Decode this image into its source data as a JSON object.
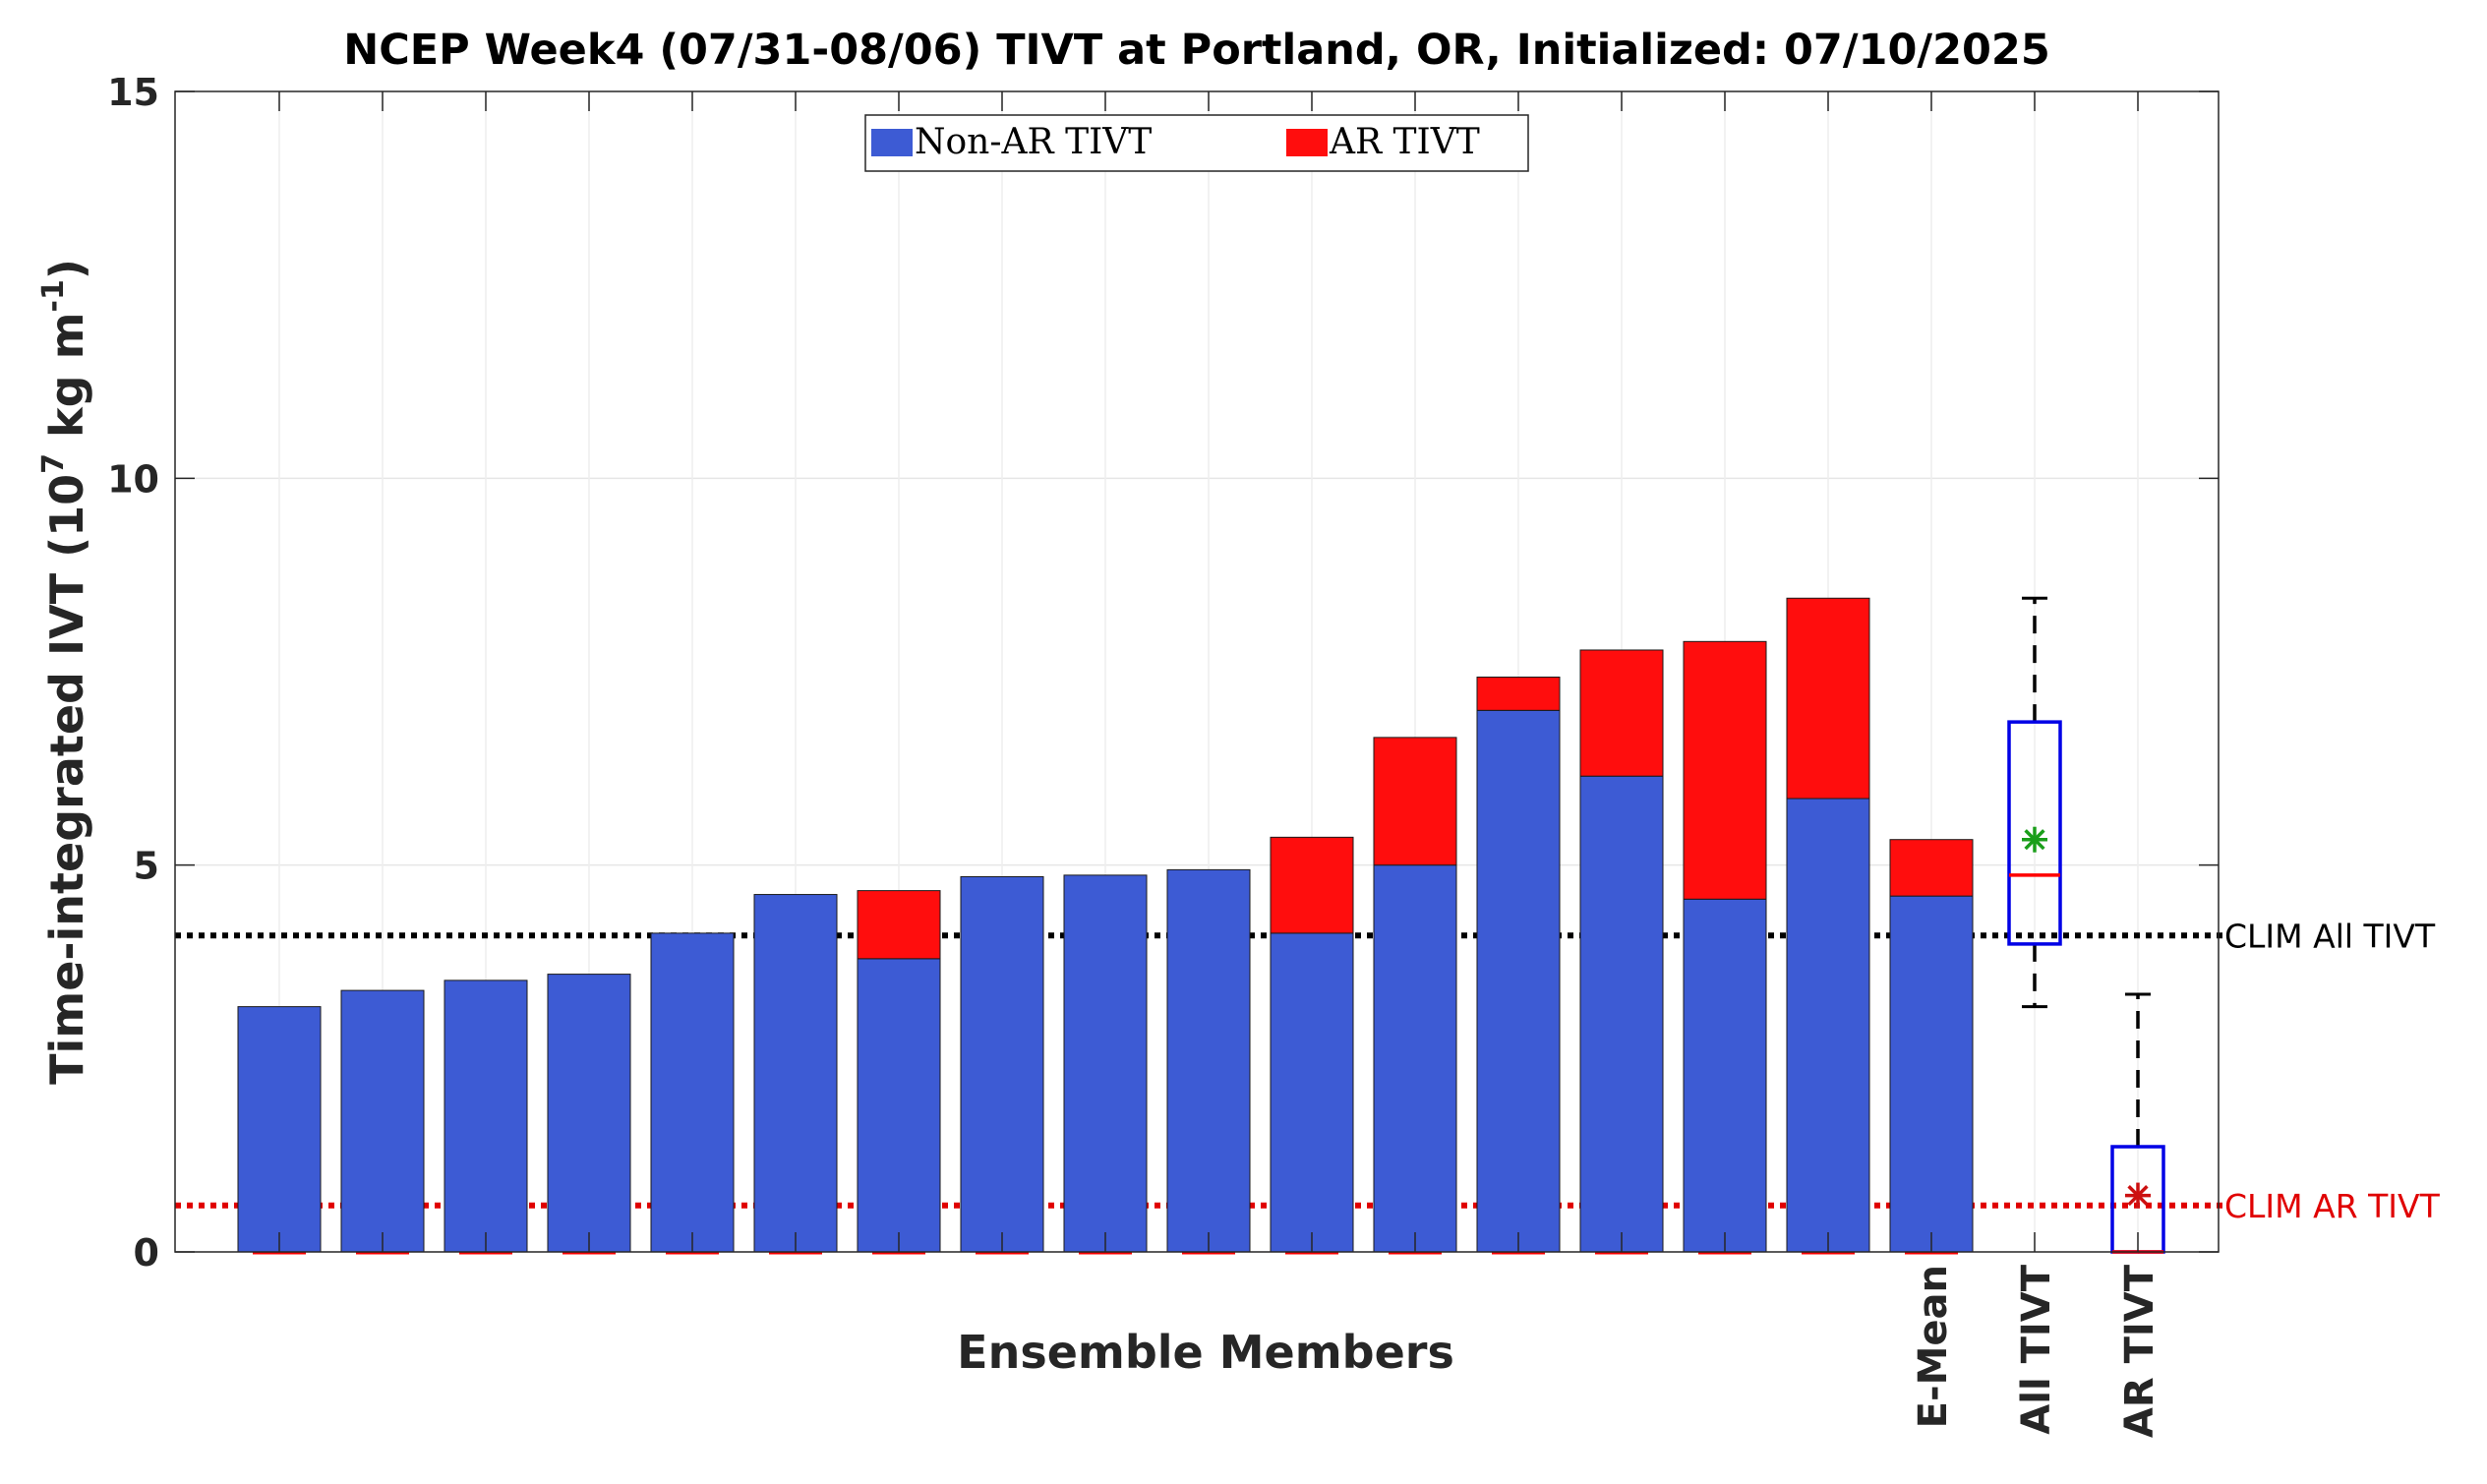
{
  "chart_data": {
    "type": "bar",
    "title": "NCEP Week4 (07/31-08/06) TIVT at Portland, OR, Initialized: 07/10/2025",
    "xlabel": "Ensemble Members",
    "ylabel_main": "Time-integrated IVT (10",
    "ylabel_exp": "7",
    "ylabel_mid": " kg m",
    "ylabel_exp2": "-1",
    "ylabel_end": ")",
    "ylim": [
      0,
      15
    ],
    "yticks": [
      0,
      5,
      10,
      15
    ],
    "ytick_labels": [
      "0",
      "5",
      "10",
      "15"
    ],
    "grid": true,
    "legend_position": "top-center",
    "stacked": true,
    "series": [
      {
        "name": "Non-AR TIVT",
        "color": "#3d5bd4",
        "values": [
          3.17,
          3.38,
          3.51,
          3.59,
          4.12,
          4.62,
          3.79,
          4.85,
          4.87,
          4.94,
          4.12,
          5.0,
          7.0,
          6.15,
          4.56,
          5.86,
          4.6
        ]
      },
      {
        "name": "AR TIVT",
        "color": "#ff0d0d",
        "values": [
          0,
          0,
          0,
          0,
          0,
          0,
          0.88,
          0,
          0,
          0,
          1.24,
          1.65,
          0.43,
          1.63,
          3.33,
          2.59,
          0.73
        ]
      }
    ],
    "categories": [
      "",
      "",
      "",
      "",
      "",
      "",
      "",
      "",
      "",
      "",
      "",
      "",
      "",
      "",
      "",
      "",
      "E-Mean"
    ],
    "boxplots": [
      {
        "label": "All TIVT",
        "min": 3.17,
        "q1": 3.98,
        "median": 4.87,
        "q3": 6.85,
        "max": 8.45,
        "mean": 5.33,
        "mean_color": "#1a9e1a"
      },
      {
        "label": "AR TIVT",
        "min": 0,
        "q1": 0,
        "median": 0,
        "q3": 1.36,
        "max": 3.33,
        "mean": 0.73,
        "mean_color": "#cc1010"
      }
    ],
    "reference_lines": [
      {
        "label": "CLIM All TIVT",
        "value": 4.09,
        "color": "#000000"
      },
      {
        "label": "CLIM AR TIVT",
        "value": 0.6,
        "color": "#e00000"
      }
    ]
  }
}
